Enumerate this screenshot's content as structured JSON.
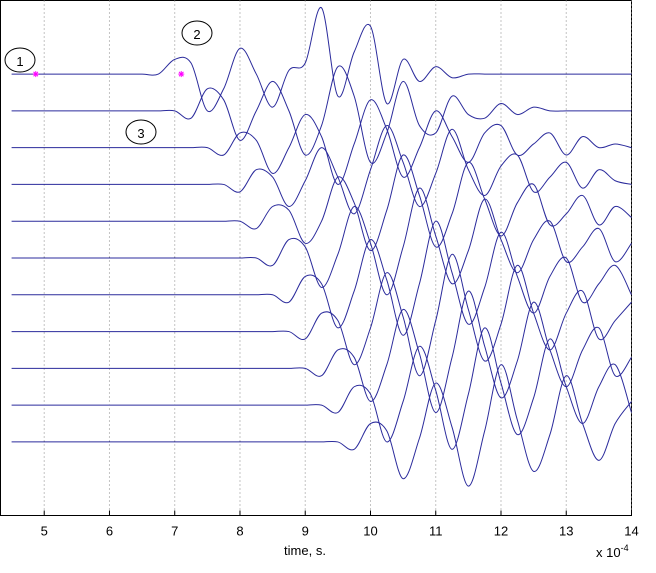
{
  "chart_data": {
    "type": "line",
    "xlabel": "time, s.",
    "x_multiplier": {
      "base": "x 10",
      "exponent": "-4"
    },
    "xlim": [
      4.33,
      14
    ],
    "xticks": [
      5,
      6,
      7,
      8,
      9,
      10,
      11,
      12,
      13,
      14
    ],
    "ylim": [
      0,
      14
    ],
    "grid": true,
    "x": [
      4.5,
      4.75,
      5,
      5.25,
      5.5,
      5.75,
      6,
      6.25,
      6.5,
      6.75,
      7,
      7.25,
      7.5,
      7.75,
      8,
      8.25,
      8.5,
      8.75,
      9,
      9.25,
      9.5,
      9.75,
      10,
      10.25,
      10.5,
      10.75,
      11,
      11.25,
      11.5,
      11.75,
      12,
      12.25,
      12.5,
      12.75,
      13,
      13.25,
      13.5,
      13.75,
      14
    ],
    "series": [
      {
        "color": "#2b2b9c",
        "values": [
          12,
          12,
          12,
          12,
          12,
          12,
          12,
          12,
          12,
          12,
          12.4,
          12.3,
          11.0,
          11.6,
          12.7,
          12.0,
          11.1,
          12.1,
          12.3,
          13.8,
          11.4,
          12.6,
          13.3,
          11.2,
          12.4,
          11.8,
          12.2,
          11.9,
          12,
          12,
          12,
          12,
          12,
          12,
          12,
          12,
          12,
          12,
          12
        ]
      },
      {
        "color": "#2b2b9c",
        "values": [
          11,
          11,
          11,
          11,
          11,
          11,
          11,
          11,
          11,
          11,
          11,
          10.8,
          11.6,
          11.3,
          10.2,
          11.0,
          11.8,
          11.0,
          9.8,
          10.6,
          12.2,
          11.4,
          9.6,
          10.4,
          11.8,
          10.6,
          10.4,
          11.4,
          10.9,
          10.8,
          11.2,
          10.9,
          11.1,
          11,
          11,
          11,
          11,
          11,
          11
        ]
      },
      {
        "color": "#2b2b9c",
        "values": [
          10,
          10,
          10,
          10,
          10,
          10,
          10,
          10,
          10,
          10,
          10,
          10,
          10,
          9.8,
          10.4,
          10.2,
          9.3,
          10.0,
          10.9,
          10.3,
          9.0,
          10.1,
          11.3,
          10.5,
          9.2,
          10.0,
          11.0,
          10.3,
          9.6,
          10.4,
          10.6,
          9.8,
          10.1,
          10.4,
          9.8,
          10.3,
          10.0,
          10.1,
          10
        ]
      },
      {
        "color": "#2b2b9c",
        "values": [
          9,
          9,
          9,
          9,
          9,
          9,
          9,
          9,
          9,
          9,
          9,
          9,
          9,
          9,
          8.8,
          9.4,
          9.2,
          8.4,
          9.1,
          10.0,
          9.2,
          8.2,
          9.4,
          10.6,
          9.6,
          8.4,
          9.3,
          10.5,
          9.4,
          8.7,
          9.5,
          9.8,
          8.8,
          9.2,
          9.6,
          8.9,
          9.4,
          9.1,
          9.0
        ]
      },
      {
        "color": "#2b2b9c",
        "values": [
          8,
          8,
          8,
          8,
          8,
          8,
          8,
          8,
          8,
          8,
          8,
          8,
          8,
          8,
          8,
          7.8,
          8.4,
          8.3,
          7.4,
          8.0,
          9.2,
          8.5,
          7.2,
          8.3,
          9.8,
          8.7,
          7.3,
          8.2,
          9.6,
          8.6,
          7.6,
          8.5,
          9.0,
          7.9,
          8.2,
          8.7,
          7.9,
          8.4,
          8.1
        ]
      },
      {
        "color": "#2b2b9c",
        "values": [
          7,
          7,
          7,
          7,
          7,
          7,
          7,
          7,
          7,
          7,
          7,
          7,
          7,
          7,
          7,
          7,
          6.8,
          7.5,
          7.3,
          6.2,
          7.1,
          8.4,
          7.4,
          6.0,
          7.3,
          8.9,
          7.6,
          6.3,
          7.2,
          8.6,
          7.5,
          6.6,
          7.5,
          8.0,
          6.9,
          7.3,
          7.8,
          6.9,
          7.4
        ]
      },
      {
        "color": "#2b2b9c",
        "values": [
          6,
          6,
          6,
          6,
          6,
          6,
          6,
          6,
          6,
          6,
          6,
          6,
          6,
          6,
          6,
          6,
          6,
          5.8,
          6.5,
          6.3,
          5.1,
          6.1,
          7.5,
          6.4,
          4.9,
          6.3,
          8.0,
          6.6,
          5.2,
          6.2,
          7.7,
          6.5,
          5.5,
          6.5,
          7.0,
          5.8,
          6.3,
          6.8,
          6.0
        ]
      },
      {
        "color": "#2b2b9c",
        "values": [
          5,
          5,
          5,
          5,
          5,
          5,
          5,
          5,
          5,
          5,
          5,
          5,
          5,
          5,
          5,
          5,
          5,
          5,
          4.8,
          5.5,
          5.3,
          4.1,
          5.1,
          6.6,
          5.4,
          3.8,
          5.3,
          7.1,
          5.6,
          4.2,
          5.2,
          6.8,
          5.5,
          4.5,
          5.5,
          6.1,
          4.8,
          5.3,
          5.8
        ]
      },
      {
        "color": "#2b2b9c",
        "values": [
          4,
          4,
          4,
          4,
          4,
          4,
          4,
          4,
          4,
          4,
          4,
          4,
          4,
          4,
          4,
          4,
          4,
          4,
          4,
          3.8,
          4.5,
          4.3,
          3.1,
          4.1,
          5.6,
          4.4,
          2.8,
          4.3,
          6.1,
          4.6,
          3.2,
          4.2,
          5.8,
          4.5,
          3.5,
          4.5,
          5.1,
          3.8,
          4.3
        ]
      },
      {
        "color": "#2b2b9c",
        "values": [
          3,
          3,
          3,
          3,
          3,
          3,
          3,
          3,
          3,
          3,
          3,
          3,
          3,
          3,
          3,
          3,
          3,
          3,
          3,
          3,
          2.8,
          3.5,
          3.3,
          2.0,
          3.1,
          4.6,
          3.4,
          1.8,
          3.3,
          5.1,
          3.6,
          2.2,
          3.2,
          4.8,
          3.5,
          2.5,
          3.5,
          4.1,
          2.8
        ]
      },
      {
        "color": "#2b2b9c",
        "values": [
          2,
          2,
          2,
          2,
          2,
          2,
          2,
          2,
          2,
          2,
          2,
          2,
          2,
          2,
          2,
          2,
          2,
          2,
          2,
          2,
          2,
          1.8,
          2.5,
          2.3,
          1.0,
          2.1,
          3.6,
          2.4,
          0.8,
          2.3,
          4.1,
          2.6,
          1.2,
          2.2,
          3.8,
          2.5,
          1.5,
          2.5,
          3.1
        ]
      }
    ],
    "markers": {
      "x": [
        4.87,
        7.1
      ],
      "values": [
        12,
        12
      ],
      "color": "#ff00ff"
    },
    "annotations": [
      "1",
      "2",
      "3"
    ]
  }
}
